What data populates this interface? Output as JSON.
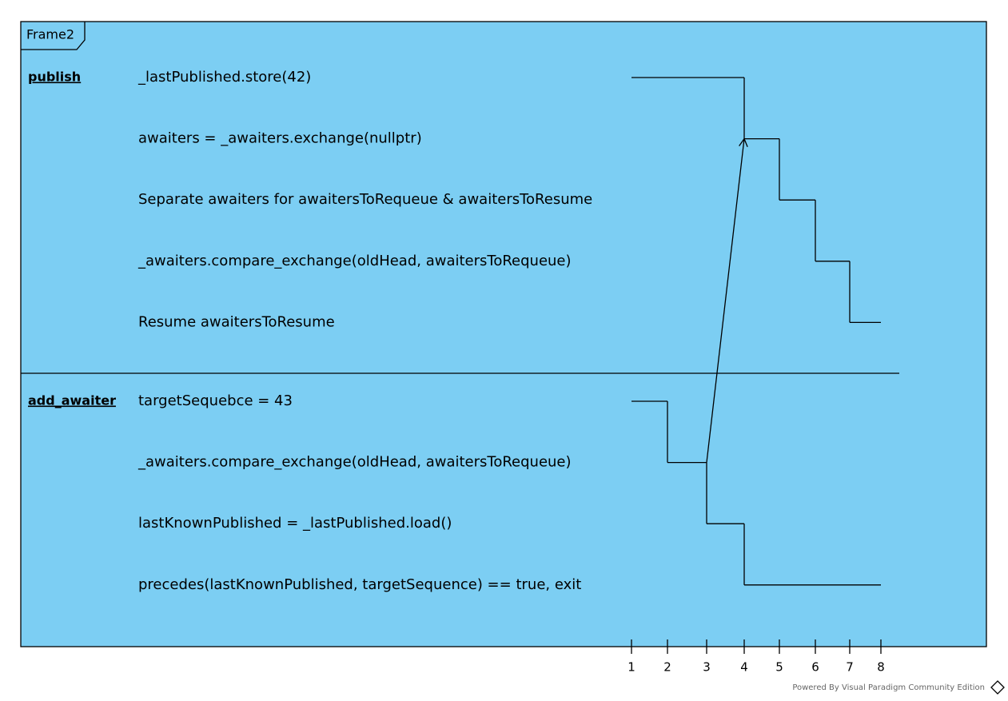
{
  "frame": {
    "title": "Frame2"
  },
  "lifelines": [
    {
      "name": "publish",
      "states": [
        "_lastPublished.store(42)",
        "awaiters = _awaiters.exchange(nullptr)",
        "Separate awaiters for awaitersToRequeue & awaitersToResume",
        "_awaiters.compare_exchange(oldHead, awaitersToRequeue)",
        "Resume awaitersToResume"
      ],
      "changes": [
        {
          "time": 1,
          "state": 0
        },
        {
          "time": 4,
          "state": 1
        },
        {
          "time": 5,
          "state": 2
        },
        {
          "time": 6,
          "state": 3
        },
        {
          "time": 7,
          "state": 4
        }
      ],
      "end": 8
    },
    {
      "name": "add_awaiter",
      "states": [
        "targetSequebce = 43",
        "_awaiters.compare_exchange(oldHead, awaitersToRequeue)",
        "lastKnownPublished = _lastPublished.load()",
        "precedes(lastKnownPublished, targetSequence) == true, exit"
      ],
      "changes": [
        {
          "time": 1,
          "state": 0
        },
        {
          "time": 2,
          "state": 1
        },
        {
          "time": 3,
          "state": 2
        },
        {
          "time": 4,
          "state": 3
        }
      ],
      "end": 8
    }
  ],
  "message": {
    "from_lifeline": 1,
    "from_time": 3,
    "from_state": 1,
    "to_lifeline": 0,
    "to_time": 4,
    "to_state": 1
  },
  "time_ticks": [
    1,
    2,
    3,
    4,
    5,
    6,
    7,
    8
  ],
  "watermark": "Powered By Visual Paradigm Community Edition"
}
